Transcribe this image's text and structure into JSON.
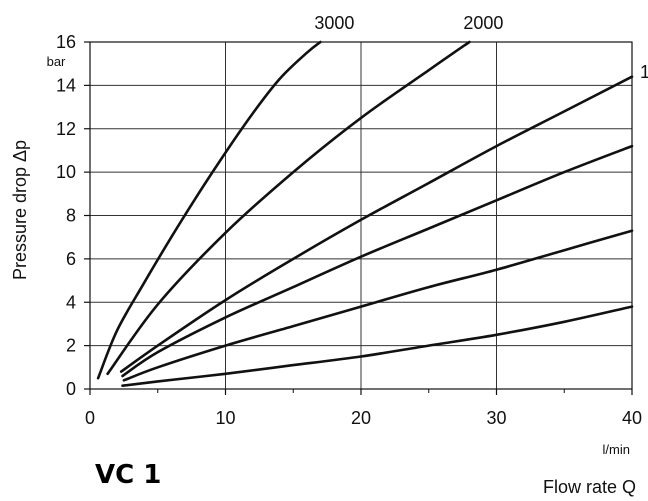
{
  "chart_data": {
    "type": "line",
    "title": "VC 1",
    "xlabel": "Flow rate Q",
    "xunit": "l/min",
    "ylabel": "Pressure drop Δp",
    "yunit": "bar",
    "xlim": [
      0,
      40
    ],
    "ylim": [
      0,
      16
    ],
    "xticks": [
      0,
      10,
      20,
      30,
      40
    ],
    "yticks": [
      0,
      2,
      4,
      6,
      8,
      10,
      12,
      14,
      16
    ],
    "grid": true,
    "series": [
      {
        "name": "3000",
        "x": [
          0.6,
          2,
          4,
          6,
          8,
          10,
          12,
          14,
          16,
          17
        ],
        "y": [
          0.5,
          2.7,
          4.9,
          7.0,
          9.0,
          10.9,
          12.7,
          14.3,
          15.5,
          16.0
        ]
      },
      {
        "name": "2000",
        "x": [
          1.3,
          5,
          10,
          15,
          20,
          25,
          28
        ],
        "y": [
          0.7,
          3.9,
          7.2,
          10.0,
          12.5,
          14.7,
          16.0
        ]
      },
      {
        "name": "",
        "x": [
          2.3,
          5,
          10,
          15,
          20,
          25,
          30,
          35,
          40
        ],
        "y": [
          0.8,
          2.0,
          4.1,
          6.0,
          7.8,
          9.5,
          11.2,
          12.8,
          14.4
        ]
      },
      {
        "name": "",
        "x": [
          2.4,
          5,
          10,
          15,
          20,
          25,
          30,
          35,
          40
        ],
        "y": [
          0.6,
          1.7,
          3.3,
          4.7,
          6.1,
          7.4,
          8.7,
          10.0,
          11.2
        ]
      },
      {
        "name": "",
        "x": [
          2.5,
          5,
          10,
          15,
          20,
          25,
          30,
          35,
          40
        ],
        "y": [
          0.4,
          1.0,
          2.0,
          2.9,
          3.8,
          4.7,
          5.5,
          6.4,
          7.3
        ]
      },
      {
        "name": "",
        "x": [
          2.4,
          5,
          10,
          15,
          20,
          25,
          30,
          35,
          40
        ],
        "y": [
          0.15,
          0.35,
          0.7,
          1.1,
          1.5,
          2.0,
          2.5,
          3.1,
          3.8
        ]
      }
    ],
    "series_label_marks": [
      "1"
    ]
  }
}
